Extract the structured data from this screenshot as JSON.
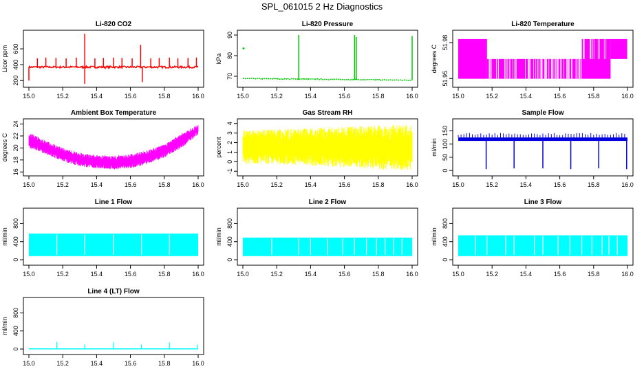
{
  "page_title": "SPL_061015  2 Hz Diagnostics",
  "chart_data": [
    {
      "type": "line",
      "title": "Li-820 CO2",
      "ylabel": "Licor ppm",
      "color": "#ff0000",
      "xlim": [
        15.0,
        16.0
      ],
      "ylim": [
        150,
        800
      ],
      "xticks": [
        "15.0",
        "15.2",
        "15.4",
        "15.6",
        "15.8",
        "16.0"
      ],
      "xtick_values": [
        15.0,
        15.2,
        15.4,
        15.6,
        15.8,
        16.0
      ],
      "yticks": [
        "200",
        "400",
        "600"
      ],
      "ytick_values": [
        200,
        400,
        600
      ],
      "baseline": 370,
      "spikes": [
        {
          "x": 15.0,
          "y": 200
        },
        {
          "x": 15.05,
          "y": 480
        },
        {
          "x": 15.1,
          "y": 490
        },
        {
          "x": 15.16,
          "y": 485
        },
        {
          "x": 15.22,
          "y": 480
        },
        {
          "x": 15.28,
          "y": 490
        },
        {
          "x": 15.33,
          "y": 790
        },
        {
          "x": 15.33,
          "y": 160
        },
        {
          "x": 15.39,
          "y": 480
        },
        {
          "x": 15.44,
          "y": 485
        },
        {
          "x": 15.5,
          "y": 490
        },
        {
          "x": 15.55,
          "y": 485
        },
        {
          "x": 15.61,
          "y": 480
        },
        {
          "x": 15.66,
          "y": 650
        },
        {
          "x": 15.67,
          "y": 180
        },
        {
          "x": 15.72,
          "y": 480
        },
        {
          "x": 15.77,
          "y": 485
        },
        {
          "x": 15.83,
          "y": 490
        },
        {
          "x": 15.88,
          "y": 480
        },
        {
          "x": 15.94,
          "y": 485
        },
        {
          "x": 15.99,
          "y": 490
        }
      ]
    },
    {
      "type": "scatter",
      "title": "Li-820 Pressure",
      "ylabel": "kPa",
      "color": "#00c800",
      "xlim": [
        15.0,
        16.0
      ],
      "ylim": [
        66,
        91
      ],
      "xticks": [
        "15.0",
        "15.2",
        "15.4",
        "15.6",
        "15.8",
        "16.0"
      ],
      "xtick_values": [
        15.0,
        15.2,
        15.4,
        15.6,
        15.8,
        16.0
      ],
      "yticks": [
        "70",
        "80",
        "90"
      ],
      "ytick_values": [
        70,
        80,
        90
      ],
      "baseline_start": 68.9,
      "baseline_end": 68.1,
      "outliers": [
        {
          "x": 15.0,
          "y": 83.5
        }
      ],
      "spikes": [
        {
          "x": 15.33,
          "y": 90
        },
        {
          "x": 15.66,
          "y": 90
        },
        {
          "x": 15.67,
          "y": 89
        },
        {
          "x": 16.0,
          "y": 89.5
        }
      ]
    },
    {
      "type": "area",
      "title": "Li-820 Temperature",
      "ylabel": "degrees C",
      "color": "#ff00ff",
      "xlim": [
        15.0,
        16.0
      ],
      "ylim": [
        51.945,
        51.988
      ],
      "xticks": [
        "15.0",
        "15.2",
        "15.4",
        "15.6",
        "15.8",
        "16.0"
      ],
      "xtick_values": [
        15.0,
        15.2,
        15.4,
        15.6,
        15.8,
        16.0
      ],
      "yticks": [
        "51.95",
        "51.98"
      ],
      "ytick_values": [
        51.95,
        51.98
      ],
      "levels": [
        51.9498,
        51.9663,
        51.9829
      ],
      "segments": [
        {
          "x0": 15.0,
          "x1": 15.17,
          "low": 51.9498,
          "high": 51.9829
        },
        {
          "x0": 15.17,
          "x1": 15.73,
          "low": 51.9498,
          "high": 51.9663
        },
        {
          "x0": 15.73,
          "x1": 15.9,
          "low": 51.9498,
          "high": 51.9829
        },
        {
          "x0": 15.9,
          "x1": 15.998,
          "low": 51.9663,
          "high": 51.9829
        }
      ]
    },
    {
      "type": "area",
      "title": "Ambient Box Temperature",
      "ylabel": "degrees C",
      "color": "#ff00ff",
      "xlim": [
        15.0,
        16.0
      ],
      "ylim": [
        15.8,
        24.4
      ],
      "xticks": [
        "15.0",
        "15.2",
        "15.4",
        "15.6",
        "15.8",
        "16.0"
      ],
      "xtick_values": [
        15.0,
        15.2,
        15.4,
        15.6,
        15.8,
        16.0
      ],
      "yticks": [
        "16",
        "18",
        "20",
        "22",
        "24"
      ],
      "ytick_values": [
        16,
        18,
        20,
        22,
        24
      ],
      "envelope": [
        {
          "x": 15.0,
          "low": 20.0,
          "high": 22.6
        },
        {
          "x": 15.1,
          "low": 19.0,
          "high": 21.2
        },
        {
          "x": 15.2,
          "low": 17.8,
          "high": 20.0
        },
        {
          "x": 15.3,
          "low": 16.9,
          "high": 19.2
        },
        {
          "x": 15.4,
          "low": 16.6,
          "high": 18.8
        },
        {
          "x": 15.5,
          "low": 16.4,
          "high": 18.7
        },
        {
          "x": 15.6,
          "low": 16.6,
          "high": 19.0
        },
        {
          "x": 15.7,
          "low": 17.3,
          "high": 19.6
        },
        {
          "x": 15.8,
          "low": 18.4,
          "high": 20.6
        },
        {
          "x": 15.9,
          "low": 20.0,
          "high": 22.4
        },
        {
          "x": 16.0,
          "low": 22.2,
          "high": 24.0
        }
      ]
    },
    {
      "type": "area",
      "title": "Gas Stream RH",
      "ylabel": "percent",
      "color": "#ffff00",
      "xlim": [
        15.0,
        16.0
      ],
      "ylim": [
        -1.2,
        4.2
      ],
      "xticks": [
        "15.0",
        "15.2",
        "15.4",
        "15.6",
        "15.8",
        "16.0"
      ],
      "xtick_values": [
        15.0,
        15.2,
        15.4,
        15.6,
        15.8,
        16.0
      ],
      "yticks": [
        "-1",
        "0",
        "1",
        "2",
        "3",
        "4"
      ],
      "ytick_values": [
        -1,
        0,
        1,
        2,
        3,
        4
      ],
      "envelope": [
        {
          "x": 15.0,
          "low": -0.2,
          "high": 3.3
        },
        {
          "x": 15.2,
          "low": -0.3,
          "high": 3.4
        },
        {
          "x": 15.4,
          "low": -0.4,
          "high": 3.5
        },
        {
          "x": 15.6,
          "low": -0.6,
          "high": 3.7
        },
        {
          "x": 15.8,
          "low": -0.8,
          "high": 3.8
        },
        {
          "x": 16.0,
          "low": -0.9,
          "high": 3.9
        }
      ]
    },
    {
      "type": "line",
      "title": "Sample Flow",
      "ylabel": "ml/min",
      "color": "#0000e0",
      "xlim": [
        15.0,
        16.0
      ],
      "ylim": [
        -10,
        185
      ],
      "xticks": [
        "15.0",
        "15.2",
        "15.4",
        "15.6",
        "15.8",
        "16.0"
      ],
      "xtick_values": [
        15.0,
        15.2,
        15.4,
        15.6,
        15.8,
        16.0
      ],
      "yticks": [
        "0",
        "50",
        "100",
        "150"
      ],
      "ytick_values": [
        0,
        50,
        100,
        150
      ],
      "band": [
        112,
        125
      ],
      "spike_top": 142,
      "dips": [
        {
          "x": 15.165,
          "y": 5
        },
        {
          "x": 15.33,
          "y": 8
        },
        {
          "x": 15.5,
          "y": 8
        },
        {
          "x": 15.665,
          "y": 5
        },
        {
          "x": 15.83,
          "y": 8
        },
        {
          "x": 15.995,
          "y": 5
        }
      ]
    },
    {
      "type": "area",
      "title": "Line 1 Flow",
      "ylabel": "ml/min",
      "color": "#00ffff",
      "xlim": [
        15.0,
        16.0
      ],
      "ylim": [
        -60,
        1080
      ],
      "xticks": [
        "15.0",
        "15.2",
        "15.4",
        "15.6",
        "15.8",
        "16.0"
      ],
      "xtick_values": [
        15.0,
        15.2,
        15.4,
        15.6,
        15.8,
        16.0
      ],
      "yticks": [
        "0",
        "400",
        "800"
      ],
      "ytick_values": [
        0,
        400,
        800
      ],
      "band": [
        80,
        580
      ],
      "gaps": [
        15.165,
        15.33,
        15.5,
        15.665,
        15.83
      ]
    },
    {
      "type": "area",
      "title": "Line 2 Flow",
      "ylabel": "ml/min",
      "color": "#00ffff",
      "xlim": [
        15.0,
        16.0
      ],
      "ylim": [
        -60,
        1080
      ],
      "xticks": [
        "15.0",
        "15.2",
        "15.4",
        "15.6",
        "15.8",
        "16.0"
      ],
      "xtick_values": [
        15.0,
        15.2,
        15.4,
        15.6,
        15.8,
        16.0
      ],
      "yticks": [
        "0",
        "400",
        "800"
      ],
      "ytick_values": [
        0,
        400,
        800
      ],
      "band": [
        80,
        490
      ],
      "gaps": [
        15.17,
        15.33,
        15.4,
        15.5,
        15.59,
        15.66,
        15.73,
        15.79,
        15.84,
        15.89,
        15.94
      ]
    },
    {
      "type": "area",
      "title": "Line 3 Flow",
      "ylabel": "ml/min",
      "color": "#00ffff",
      "xlim": [
        15.0,
        16.0
      ],
      "ylim": [
        -60,
        1080
      ],
      "xticks": [
        "15.0",
        "15.2",
        "15.4",
        "15.6",
        "15.8",
        "16.0"
      ],
      "xtick_values": [
        15.0,
        15.2,
        15.4,
        15.6,
        15.8,
        16.0
      ],
      "yticks": [
        "0",
        "400",
        "800"
      ],
      "ytick_values": [
        0,
        400,
        800
      ],
      "band": [
        80,
        540
      ],
      "gaps": [
        15.1,
        15.17,
        15.28,
        15.33,
        15.45,
        15.5,
        15.59,
        15.66,
        15.73,
        15.79,
        15.85,
        15.89,
        15.94
      ]
    },
    {
      "type": "line",
      "title": "Line 4 (LT) Flow",
      "ylabel": "ml/min",
      "color": "#00ffff",
      "xlim": [
        15.0,
        16.0
      ],
      "ylim": [
        -60,
        1080
      ],
      "xticks": [
        "15.0",
        "15.2",
        "15.4",
        "15.6",
        "15.8",
        "16.0"
      ],
      "xtick_values": [
        15.0,
        15.2,
        15.4,
        15.6,
        15.8,
        16.0
      ],
      "yticks": [
        "0",
        "400",
        "800"
      ],
      "ytick_values": [
        0,
        400,
        800
      ],
      "baseline": 5,
      "spikes": [
        {
          "x": 15.165,
          "y": 160
        },
        {
          "x": 15.33,
          "y": 100
        },
        {
          "x": 15.5,
          "y": 150
        },
        {
          "x": 15.665,
          "y": 100
        },
        {
          "x": 15.83,
          "y": 150
        },
        {
          "x": 15.995,
          "y": 100
        }
      ]
    }
  ]
}
